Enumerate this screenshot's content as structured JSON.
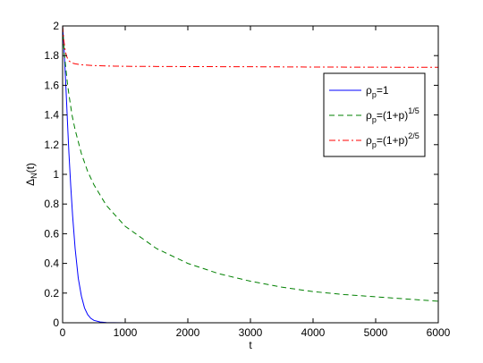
{
  "chart_data": {
    "type": "line",
    "xlabel": "t",
    "ylabel_base": "Δ",
    "ylabel_sub": "N",
    "ylabel_tail": "(t)",
    "xlim": [
      0,
      6000
    ],
    "ylim": [
      0,
      2
    ],
    "xticks": [
      0,
      1000,
      2000,
      3000,
      4000,
      5000,
      6000
    ],
    "yticks": [
      0,
      0.2,
      0.4,
      0.6,
      0.8,
      1,
      1.2,
      1.4,
      1.6,
      1.8,
      2
    ],
    "grid": false,
    "legend_position": "upper-right",
    "series": [
      {
        "label_base": "ρ",
        "label_sub": "p",
        "label_main": "=1",
        "label_sup": "",
        "color": "#0000ff",
        "style": "solid",
        "x": [
          0,
          20,
          40,
          60,
          80,
          100,
          130,
          160,
          200,
          250,
          300,
          350,
          400,
          450,
          500,
          600,
          700,
          800,
          1000,
          2000,
          3000,
          4000,
          5000,
          6000
        ],
        "y": [
          2.0,
          1.87,
          1.7,
          1.52,
          1.33,
          1.15,
          0.92,
          0.72,
          0.5,
          0.3,
          0.18,
          0.1,
          0.055,
          0.03,
          0.016,
          0.005,
          0.0015,
          0.0005,
          0.0,
          0.0,
          0.0,
          0.0,
          0.0,
          0.0
        ]
      },
      {
        "label_base": "ρ",
        "label_sub": "p",
        "label_main": "=(1+p)",
        "label_sup": "1/5",
        "color": "#008000",
        "style": "dashed",
        "x": [
          0,
          25,
          50,
          75,
          100,
          150,
          200,
          300,
          400,
          500,
          700,
          1000,
          1500,
          2000,
          2500,
          3000,
          3500,
          4000,
          4500,
          5000,
          5500,
          6000
        ],
        "y": [
          2.0,
          1.82,
          1.72,
          1.62,
          1.54,
          1.4,
          1.3,
          1.14,
          1.02,
          0.93,
          0.79,
          0.65,
          0.5,
          0.4,
          0.33,
          0.28,
          0.24,
          0.21,
          0.19,
          0.175,
          0.16,
          0.145
        ]
      },
      {
        "label_base": "ρ",
        "label_sub": "p",
        "label_main": "=(1+p)",
        "label_sup": "2/5",
        "color": "#ff0000",
        "style": "dashdot",
        "x": [
          0,
          20,
          40,
          60,
          80,
          100,
          150,
          200,
          300,
          500,
          700,
          1000,
          1500,
          2000,
          3000,
          4000,
          5000,
          6000
        ],
        "y": [
          2.0,
          1.9,
          1.84,
          1.8,
          1.78,
          1.765,
          1.75,
          1.745,
          1.738,
          1.733,
          1.73,
          1.728,
          1.727,
          1.726,
          1.725,
          1.723,
          1.722,
          1.721
        ]
      }
    ]
  }
}
